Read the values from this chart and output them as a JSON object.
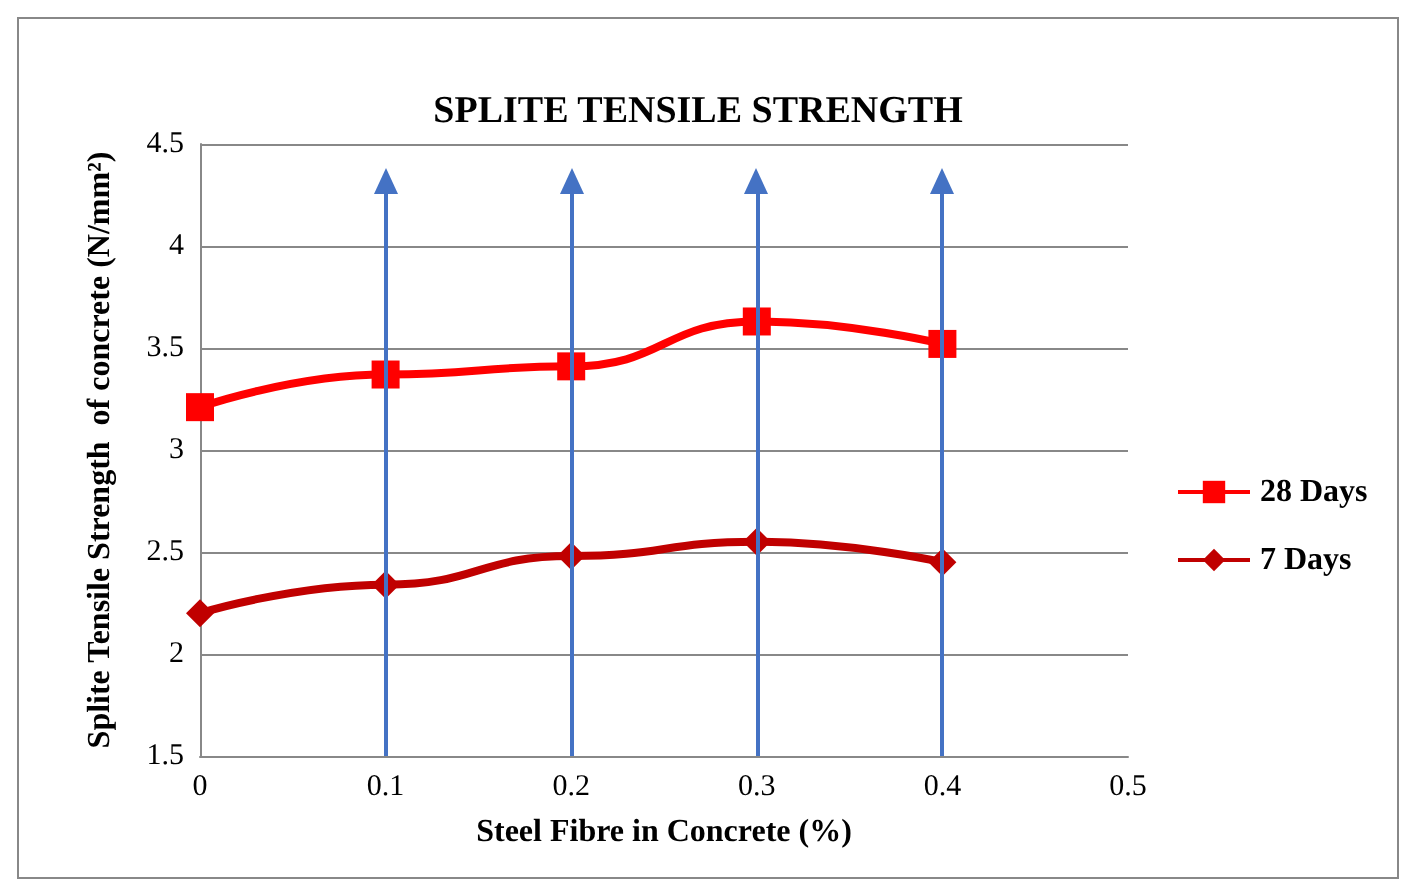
{
  "chart_data": {
    "type": "line",
    "title": "SPLITE TENSILE STRENGTH",
    "xlabel": "Steel Fibre in Concrete (%)",
    "ylabel": "Splite Tensile Strength  of concrete (N/mm²)",
    "x": [
      0,
      0.1,
      0.2,
      0.3,
      0.4
    ],
    "series": [
      {
        "name": "28 Days",
        "color": "#ff0000",
        "marker": "square",
        "values": [
          3.21,
          3.37,
          3.41,
          3.63,
          3.52
        ]
      },
      {
        "name": "7 Days",
        "color": "#c00000",
        "marker": "diamond",
        "values": [
          2.2,
          2.34,
          2.48,
          2.55,
          2.45
        ]
      }
    ],
    "xlim": [
      0,
      0.5
    ],
    "xticks": [
      0,
      0.1,
      0.2,
      0.3,
      0.4,
      0.5
    ],
    "ylim": [
      1.5,
      4.5
    ],
    "yticks": [
      1.5,
      2,
      2.5,
      3,
      3.5,
      4,
      4.5
    ],
    "grid": "y",
    "legend": "right",
    "ref_lines": [
      {
        "axis": "x",
        "value": 0.1,
        "color": "#4472c4"
      },
      {
        "axis": "x",
        "value": 0.2,
        "color": "#4472c4"
      },
      {
        "axis": "x",
        "value": 0.3,
        "color": "#4472c4"
      },
      {
        "axis": "x",
        "value": 0.4,
        "color": "#4472c4"
      }
    ]
  }
}
